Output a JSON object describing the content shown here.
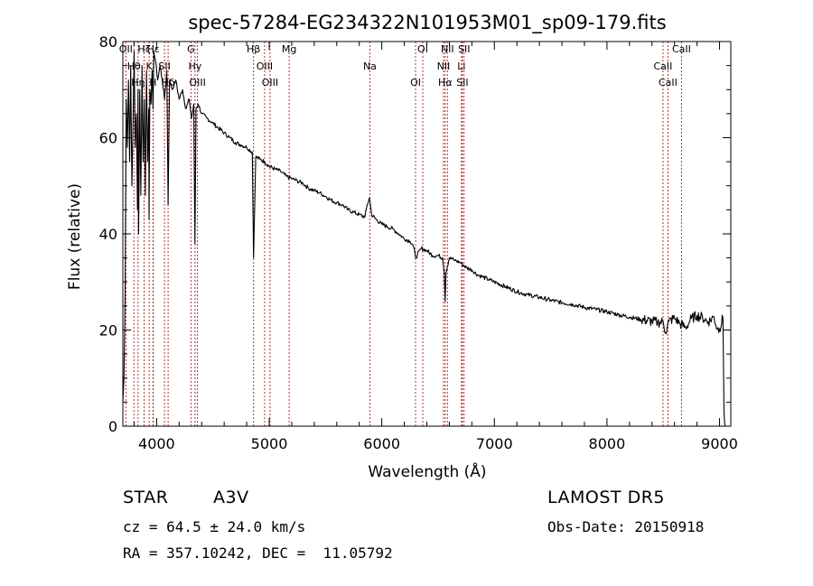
{
  "chart_data": {
    "type": "line",
    "title": "spec-57284-EG234322N101953M01_sp09-179.fits",
    "xlabel": "Wavelength (Å)",
    "ylabel": "Flux (relative)",
    "xlim": [
      3700,
      9100
    ],
    "ylim": [
      0,
      80
    ],
    "xticks": [
      4000,
      5000,
      6000,
      7000,
      8000,
      9000
    ],
    "yticks": [
      0,
      20,
      40,
      60,
      80
    ],
    "grid": false,
    "series": [
      {
        "x": [
          3700,
          3710,
          3720,
          3730,
          3740,
          3750,
          3760,
          3770,
          3780,
          3790,
          3800,
          3810,
          3820,
          3830,
          3835,
          3840,
          3850,
          3860,
          3870,
          3880,
          3890,
          3900,
          3910,
          3920,
          3930,
          3933,
          3940,
          3950,
          3960,
          3968,
          3975,
          3990,
          4010,
          4030,
          4050,
          4070,
          4090,
          4102,
          4115,
          4140,
          4170,
          4200,
          4230,
          4260,
          4290,
          4310,
          4330,
          4340,
          4350,
          4370,
          4400,
          4450,
          4500,
          4550,
          4600,
          4650,
          4700,
          4750,
          4800,
          4850,
          4861,
          4880,
          4920,
          4960,
          5000,
          5050,
          5100,
          5150,
          5200,
          5250,
          5300,
          5350,
          5400,
          5450,
          5500,
          5550,
          5600,
          5650,
          5700,
          5750,
          5800,
          5850,
          5870,
          5890,
          5910,
          5950,
          6000,
          6050,
          6100,
          6150,
          6200,
          6250,
          6280,
          6300,
          6350,
          6400,
          6450,
          6500,
          6540,
          6555,
          6563,
          6570,
          6600,
          6650,
          6700,
          6750,
          6800,
          6850,
          6900,
          6950,
          7000,
          7100,
          7200,
          7300,
          7400,
          7500,
          7600,
          7700,
          7800,
          7900,
          8000,
          8100,
          8200,
          8300,
          8400,
          8450,
          8500,
          8520,
          8550,
          8600,
          8650,
          8700,
          8750,
          8800,
          8850,
          8900,
          8950,
          8980,
          9000,
          9030,
          9040,
          9050
        ],
        "y": [
          5,
          10,
          27,
          68,
          58,
          72,
          55,
          75,
          50,
          62,
          78,
          58,
          65,
          45,
          70,
          40,
          70,
          48,
          75,
          55,
          68,
          48,
          74,
          55,
          66,
          43,
          70,
          67,
          74,
          66,
          78,
          76,
          72,
          75,
          72,
          68,
          74,
          46,
          72,
          70,
          72,
          68,
          70,
          66,
          68,
          64,
          67,
          38,
          66,
          67,
          65,
          64,
          63,
          62,
          61,
          60,
          59,
          58.5,
          58,
          57,
          35,
          56,
          55.5,
          55,
          54,
          53.5,
          53,
          52,
          51.5,
          51,
          50.5,
          49.5,
          49,
          48.5,
          47.8,
          47,
          46.5,
          46,
          45,
          44.5,
          44,
          43.5,
          46,
          47.5,
          44,
          43,
          42,
          41.5,
          41,
          40,
          39,
          38.5,
          37.5,
          35,
          37,
          36.5,
          35.5,
          35.5,
          35,
          32,
          26,
          32,
          35,
          34.5,
          34,
          33,
          32.5,
          31.5,
          31,
          30.5,
          30,
          29,
          28,
          27.3,
          26.8,
          26.2,
          25.7,
          25.3,
          24.7,
          24.3,
          23.8,
          23.2,
          22.7,
          22.2,
          21.8,
          21.6,
          21.7,
          19.5,
          21.8,
          22.5,
          21.3,
          20.5,
          22.4,
          23,
          22.6,
          21.7,
          22.8,
          20.2,
          20.3,
          22.5,
          3,
          0
        ]
      }
    ],
    "lines": [
      {
        "label": "OII",
        "x": 3727
      },
      {
        "label": "Hθ",
        "x": 3798
      },
      {
        "label": "Hη",
        "x": 3835
      },
      {
        "label": "Hζ",
        "x": 3889
      },
      {
        "label": "K",
        "x": 3934
      },
      {
        "label": "H",
        "x": 3968
      },
      {
        "label": "Hε",
        "x": 3970
      },
      {
        "label": "SII",
        "x": 4070
      },
      {
        "label": "Hδ",
        "x": 4102
      },
      {
        "label": "G",
        "x": 4305
      },
      {
        "label": "Hγ",
        "x": 4341
      },
      {
        "label": "OIII",
        "x": 4363
      },
      {
        "label": "Hβ",
        "x": 4861
      },
      {
        "label": "OIII",
        "x": 4959
      },
      {
        "label": "OIII",
        "x": 5007
      },
      {
        "label": "Mg",
        "x": 5177
      },
      {
        "label": "Na",
        "x": 5894
      },
      {
        "label": "OI",
        "x": 6300
      },
      {
        "label": "OI",
        "x": 6364
      },
      {
        "label": "NII",
        "x": 6548
      },
      {
        "label": "Hα",
        "x": 6563
      },
      {
        "label": "NII",
        "x": 6583
      },
      {
        "label": "Li",
        "x": 6708
      },
      {
        "label": "SII",
        "x": 6716
      },
      {
        "label": "SII",
        "x": 6731
      },
      {
        "label": "CaII",
        "x": 8498
      },
      {
        "label": "CaII",
        "x": 8542
      },
      {
        "label": "CaII",
        "x": 8662
      }
    ]
  },
  "info": {
    "class": "STAR",
    "subclass": "A3V",
    "survey": "LAMOST DR5",
    "cz": "cz = 64.5 ± 24.0 km/s",
    "obs_date": "Obs-Date: 20150918",
    "radec": "RA = 357.10242, DEC =  11.05792"
  }
}
